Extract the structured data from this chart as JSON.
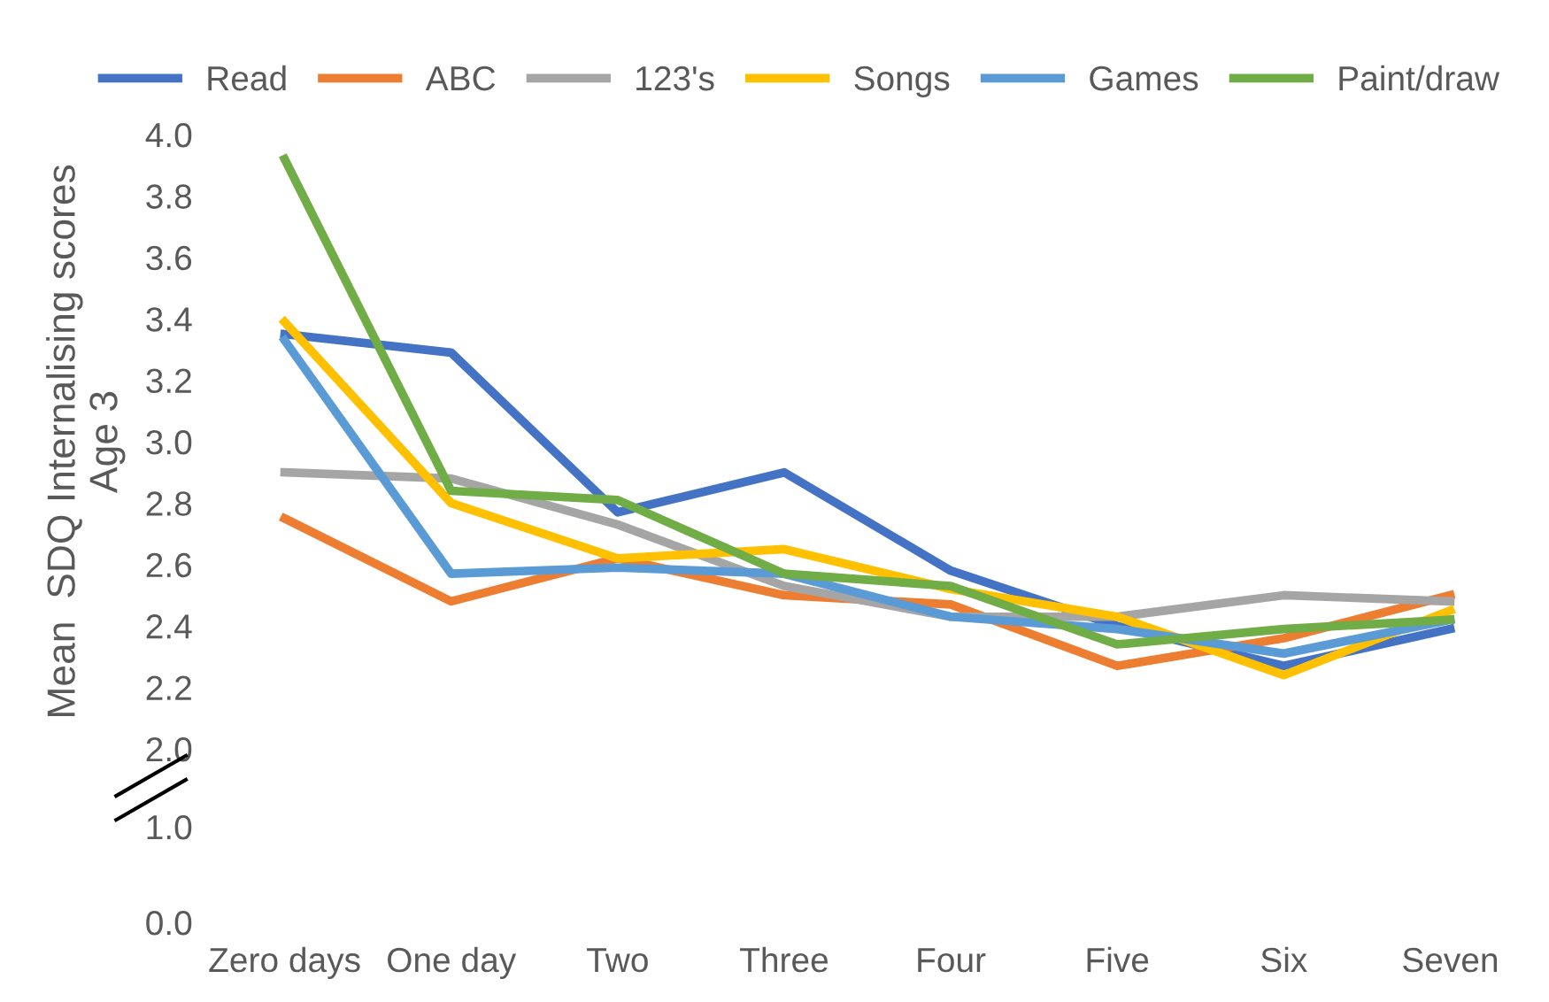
{
  "chart_data": [
    {
      "type": "line",
      "ylabel": "Mean  SDQ Internalising scores\nAge 3",
      "categories": [
        null,
        null,
        null,
        null,
        null,
        null,
        null,
        null
      ],
      "series": [
        {
          "name": "Read",
          "color": "#4472c4",
          "values": [
            3.35,
            3.29,
            2.77,
            2.9,
            2.58,
            2.4,
            2.27,
            2.39
          ]
        },
        {
          "name": "ABC",
          "color": "#ed7d31",
          "values": [
            2.75,
            2.48,
            2.62,
            2.5,
            2.47,
            2.27,
            2.36,
            2.5
          ]
        },
        {
          "name": "123's",
          "color": "#a5a5a5",
          "values": [
            2.9,
            2.88,
            2.73,
            2.53,
            2.43,
            2.43,
            2.5,
            2.48
          ]
        },
        {
          "name": "Songs",
          "color": "#ffc000",
          "values": [
            3.39,
            2.8,
            2.62,
            2.65,
            2.52,
            2.43,
            2.24,
            2.45
          ]
        },
        {
          "name": "Games",
          "color": "#5b9bd5",
          "values": [
            3.33,
            2.57,
            2.59,
            2.57,
            2.43,
            2.39,
            2.31,
            2.42
          ]
        },
        {
          "name": "Paint/draw",
          "color": "#70ad47",
          "values": [
            3.92,
            2.84,
            2.81,
            2.57,
            2.53,
            2.34,
            2.39,
            2.42
          ]
        }
      ],
      "ylim": [
        2.0,
        4.0
      ],
      "yticks": [
        {
          "value": 2,
          "label": "2.0"
        },
        2.2,
        2.4,
        2.6,
        2.8,
        {
          "value": 3,
          "label": "3.0"
        },
        3.2,
        3.4,
        3.6,
        3.8,
        {
          "value": 4,
          "label": "4.0"
        }
      ],
      "tick_labels": "y",
      "legend": "top",
      "grid": false,
      "marker": "none",
      "line_style": "solid"
    },
    {
      "type": "line",
      "categories": [
        "Zero days",
        "One day",
        "Two",
        "Three",
        "Four",
        "Five",
        "Six",
        "Seven"
      ],
      "grid": false,
      "ylim": [
        0,
        1
      ],
      "yticks": [
        {
          "value": 0,
          "label": "0.0"
        },
        {
          "value": 1,
          "label": "1.0"
        }
      ]
    }
  ]
}
